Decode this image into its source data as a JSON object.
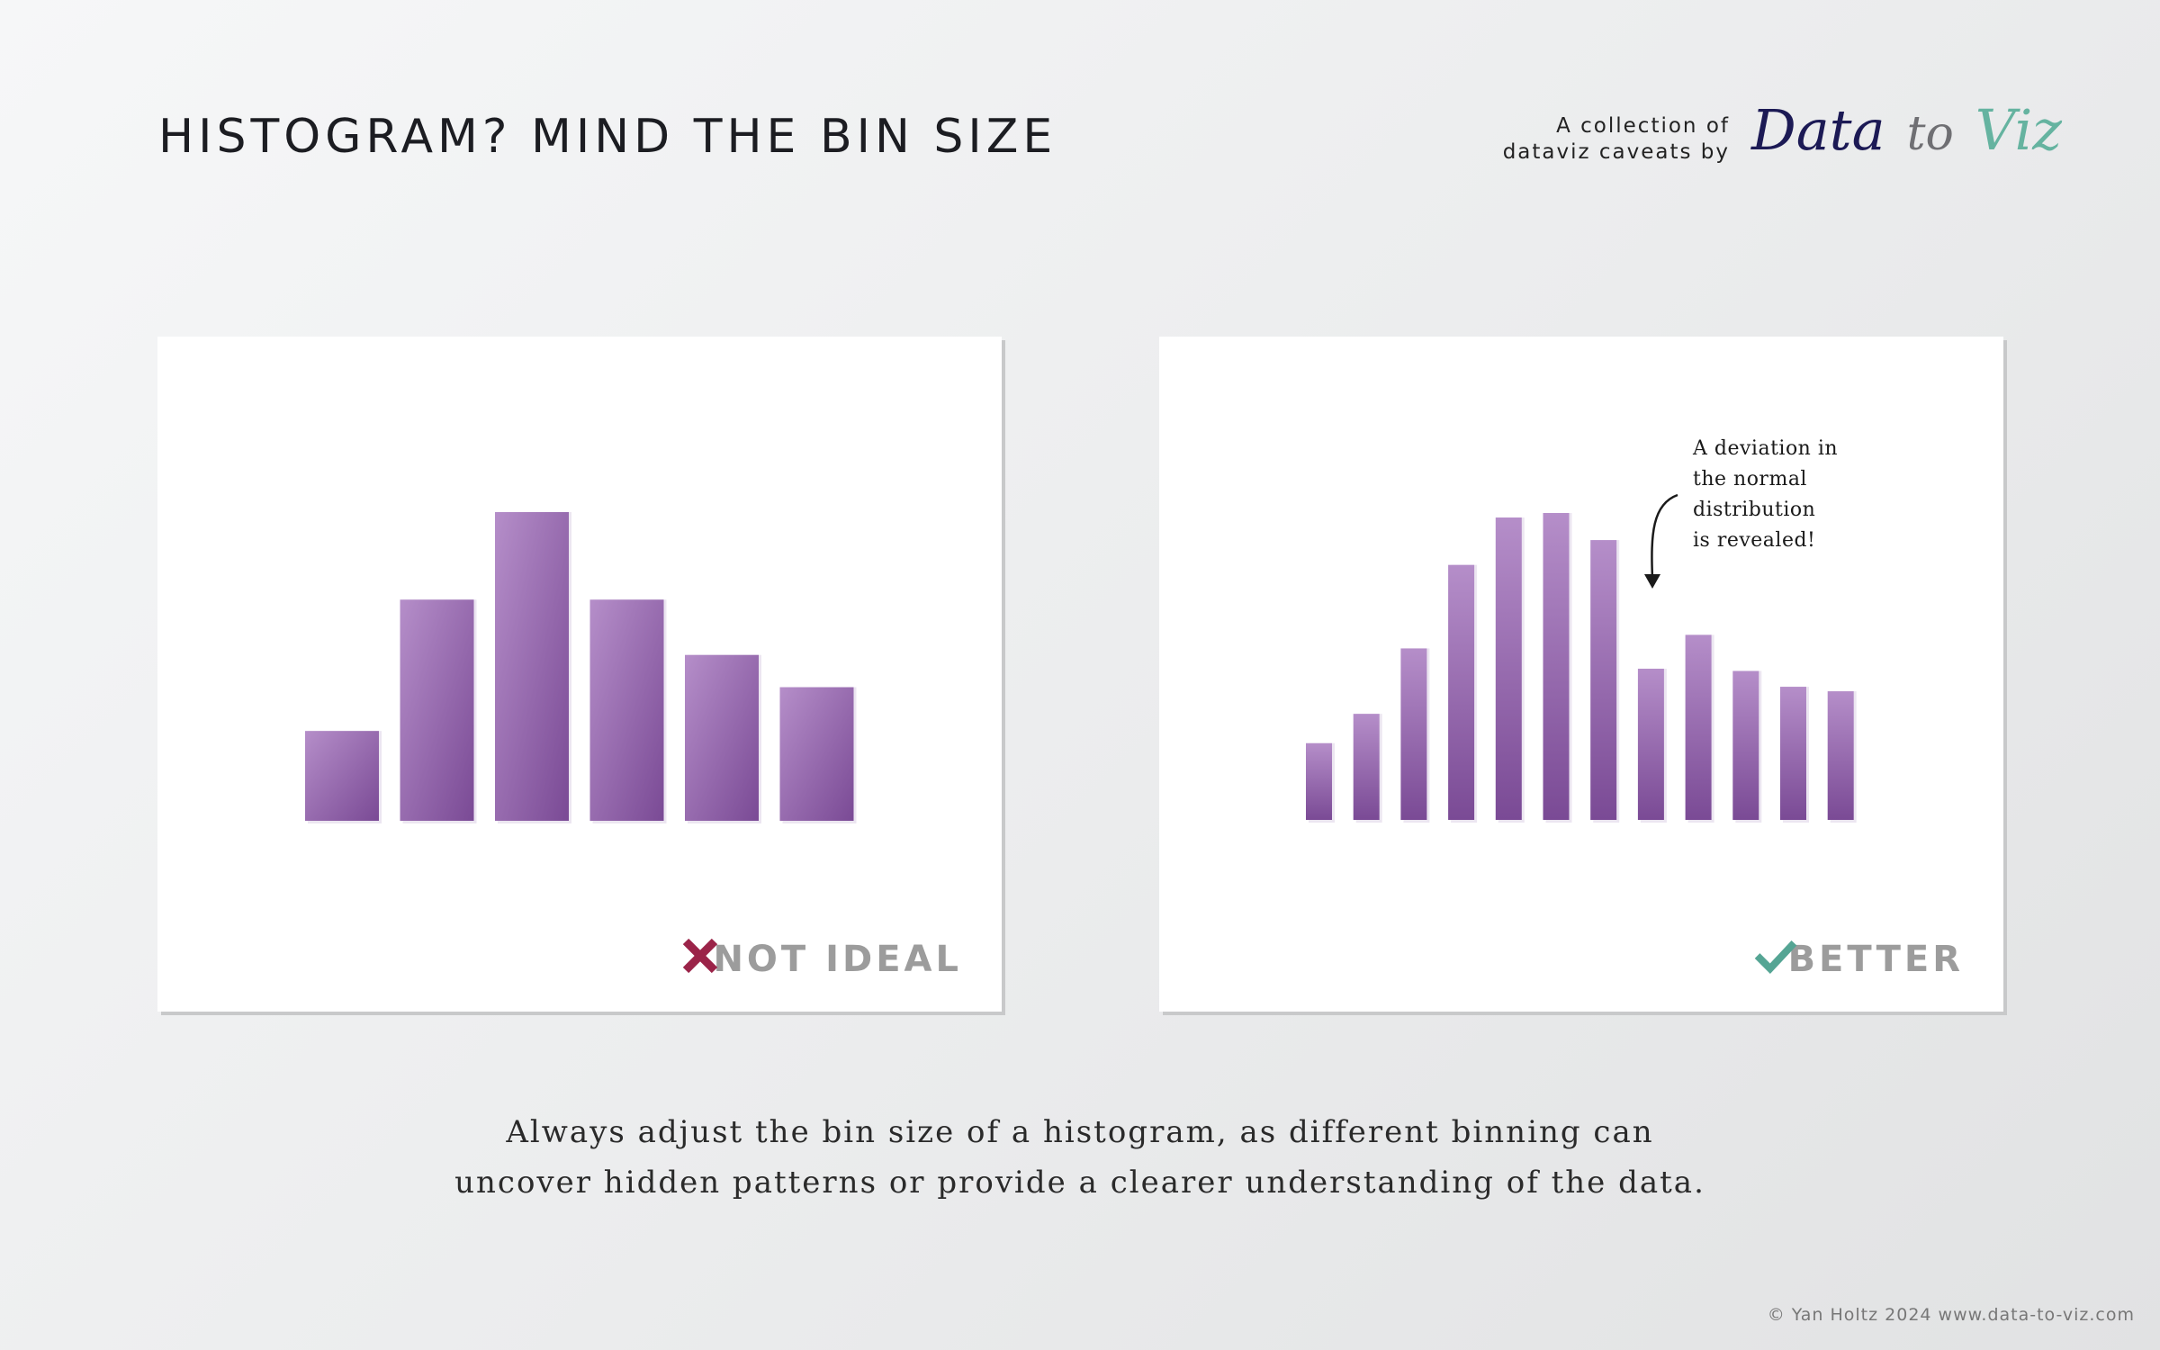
{
  "header": {
    "title": "HISTOGRAM? MIND THE BIN SIZE",
    "collection_line1": "A collection of",
    "collection_line2": "dataviz caveats by",
    "logo_part1": "Data",
    "logo_part2": "to",
    "logo_part3": "Viz"
  },
  "colors": {
    "bar_light": "#b58ec9",
    "bar_dark": "#7a4a95",
    "cross": "#9b2449",
    "check": "#55a594",
    "verdict_text": "#9c9c9c"
  },
  "left_panel": {
    "verdict_label": "NOT IDEAL",
    "verdict_icon": "cross-icon"
  },
  "right_panel": {
    "verdict_label": "BETTER",
    "verdict_icon": "check-icon",
    "annotation": [
      "A deviation in",
      "the normal",
      "distribution",
      "is revealed!"
    ]
  },
  "chart_data": [
    {
      "type": "bar",
      "panel": "left",
      "values": [
        19.5,
        48,
        67,
        48,
        36,
        29
      ],
      "ylim": [
        0,
        67
      ]
    },
    {
      "type": "bar",
      "panel": "right",
      "values": [
        17,
        23.5,
        38,
        56.5,
        67,
        68,
        62,
        33.5,
        41,
        33,
        29.5,
        28.5
      ],
      "ylim": [
        0,
        68
      ]
    }
  ],
  "caption": {
    "line1": "Always adjust the bin size of a histogram, as different binning can",
    "line2": "uncover hidden patterns or provide a clearer understanding of the data."
  },
  "footer": "© Yan Holtz 2024 www.data-to-viz.com"
}
